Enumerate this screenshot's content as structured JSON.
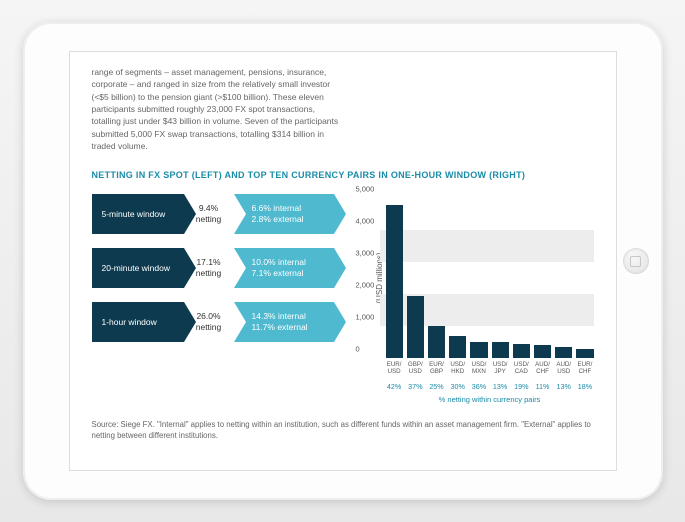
{
  "colors": {
    "accent_teal": "#1a8ca8",
    "chevron_dark": "#0d3a4f",
    "chevron_light": "#4fb9cf",
    "grid_band": "#ededed",
    "bar": "#0d3a4f",
    "text": "#555555"
  },
  "intro": "range of segments – asset management, pensions, insurance, corporate – and ranged in size from the relatively small investor (<$5 billion) to the pension giant (>$100 billion). These eleven participants submitted roughly 23,000 FX spot transactions, totalling just under $43 billion in volume. Seven of the participants submitted 5,000 FX swap transactions, totalling $314 billion in traded volume.",
  "chart_title": "NETTING IN FX SPOT (LEFT) AND TOP TEN CURRENCY PAIRS IN ONE-HOUR WINDOW (RIGHT)",
  "netting_rows": [
    {
      "window": "5-minute window",
      "netting": "9.4% netting",
      "internal": "6.6% internal",
      "external": "2.8% external"
    },
    {
      "window": "20-minute window",
      "netting": "17.1% netting",
      "internal": "10.0% internal",
      "external": "7.1% external"
    },
    {
      "window": "1-hour window",
      "netting": "26.0% netting",
      "internal": "14.3% internal",
      "external": "11.7% external"
    }
  ],
  "barchart": {
    "type": "bar",
    "ylabel": "(USD millions)",
    "ylim": [
      0,
      5000
    ],
    "yticks": [
      0,
      1000,
      2000,
      3000,
      4000,
      5000
    ],
    "bands": [
      [
        1000,
        2000
      ],
      [
        3000,
        4000
      ]
    ],
    "categories": [
      "EUR/ USD",
      "GBP/ USD",
      "EUR/ GBP",
      "USD/ HKD",
      "USD/ MXN",
      "USD/ JPY",
      "USD/ CAD",
      "AUD/ CHF",
      "AUD/ USD",
      "EUR/ CHF"
    ],
    "values": [
      4800,
      1950,
      1000,
      700,
      500,
      500,
      450,
      400,
      350,
      300
    ],
    "percents": [
      "42%",
      "37%",
      "25%",
      "30%",
      "36%",
      "13%",
      "19%",
      "11%",
      "13%",
      "18%"
    ],
    "pct_caption": "% netting within currency pairs",
    "bar_color": "#0d3a4f",
    "band_color": "#ededed",
    "axis_fontsize": 7.5
  },
  "source": "Source: Siege FX. \"Internal\" applies to netting within an institution, such as different funds within an asset management firm. \"External\" applies to netting between different institutions."
}
